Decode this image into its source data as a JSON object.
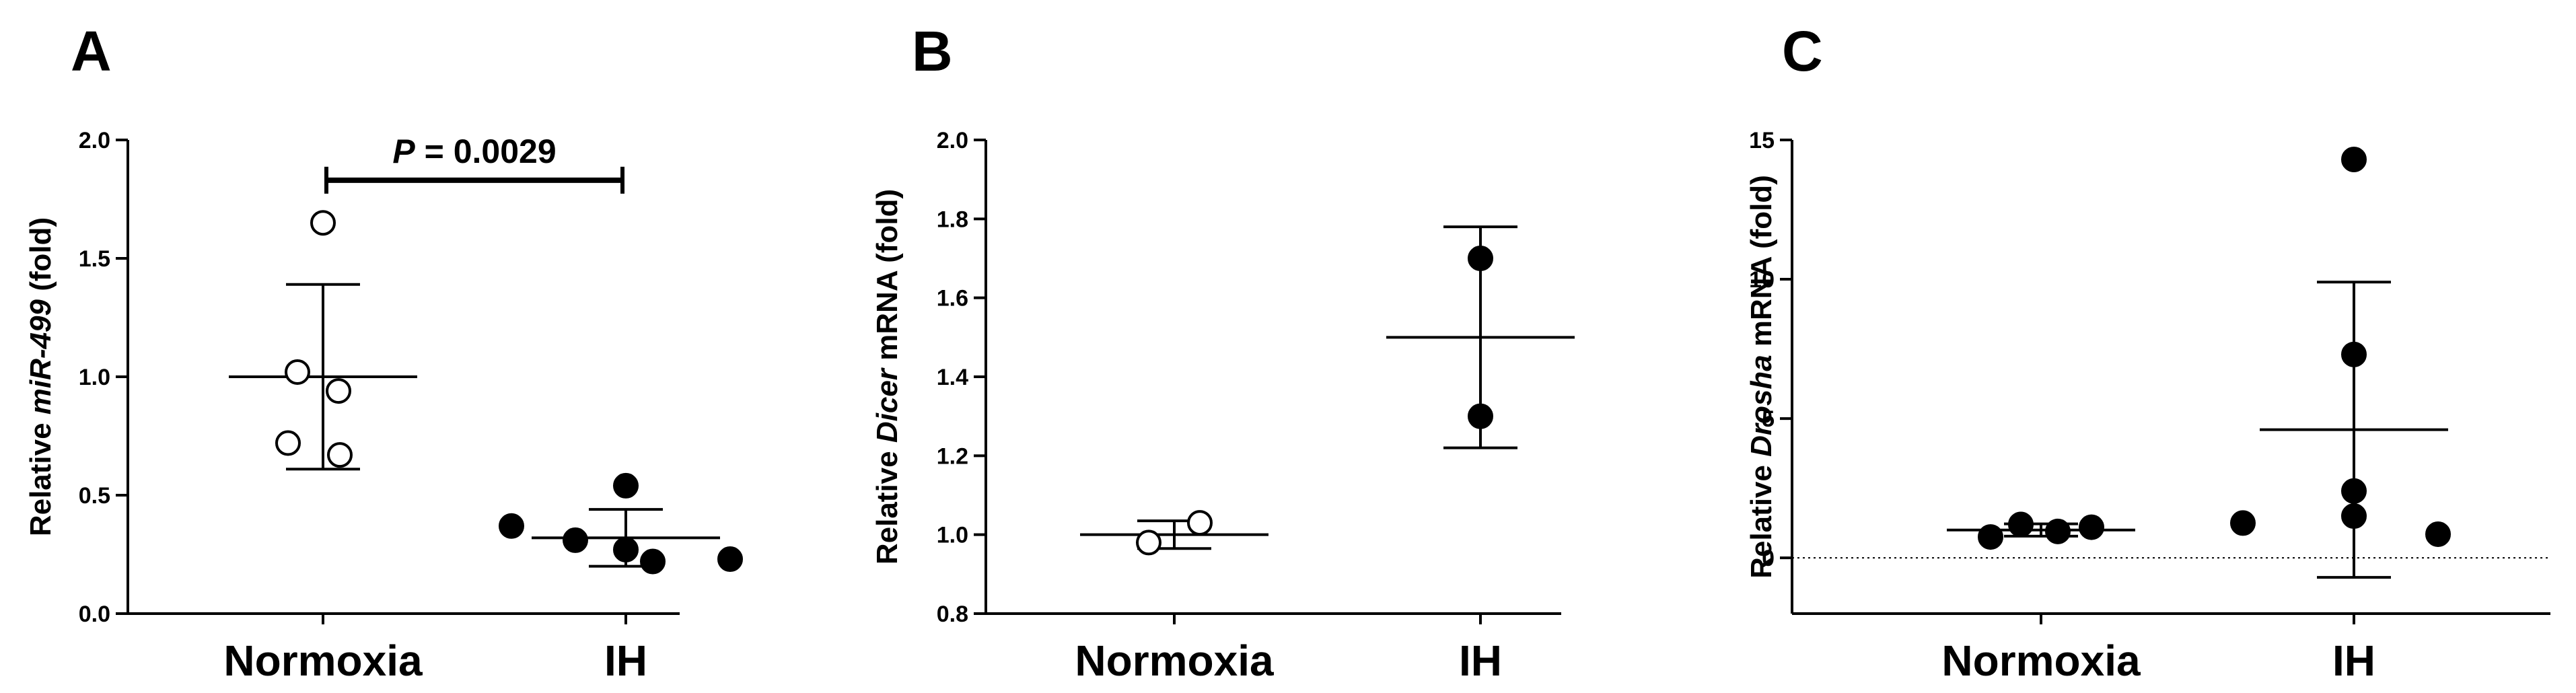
{
  "chart_data": [
    {
      "type": "scatter",
      "panel": "A",
      "ylabel": {
        "pre": "Relative ",
        "italic": "miR-499",
        "post": " (fold)"
      },
      "ylim": [
        0.0,
        2.0
      ],
      "yticks": [
        0.0,
        0.5,
        1.0,
        1.5,
        2.0
      ],
      "ytick_labels": [
        "0.0",
        "0.5",
        "1.0",
        "1.5",
        "2.0"
      ],
      "categories": [
        "Normoxia",
        "IH"
      ],
      "groups": [
        {
          "category": "Normoxia",
          "marker": "open",
          "points": [
            1.65,
            1.02,
            0.94,
            0.72,
            0.67
          ],
          "mean": 1.0,
          "sd_low": 0.61,
          "sd_high": 1.39
        },
        {
          "category": "IH",
          "marker": "filled",
          "points": [
            0.54,
            0.37,
            0.31,
            0.27,
            0.23,
            0.22
          ],
          "mean": 0.32,
          "sd_low": 0.2,
          "sd_high": 0.44
        }
      ],
      "annotation": {
        "italic": "P",
        "text": " = 0.0029",
        "y": 1.83
      }
    },
    {
      "type": "scatter",
      "panel": "B",
      "ylabel": {
        "pre": "Relative ",
        "italic": "Dicer",
        "post": " mRNA (fold)"
      },
      "ylim": [
        0.8,
        2.0
      ],
      "yticks": [
        0.8,
        1.0,
        1.2,
        1.4,
        1.6,
        1.8,
        2.0
      ],
      "ytick_labels": [
        "0.8",
        "1.0",
        "1.2",
        "1.4",
        "1.6",
        "1.8",
        "2.0"
      ],
      "categories": [
        "Normoxia",
        "IH"
      ],
      "groups": [
        {
          "category": "Normoxia",
          "marker": "open",
          "points": [
            1.03,
            0.98
          ],
          "mean": 1.0,
          "sd_low": 0.965,
          "sd_high": 1.035
        },
        {
          "category": "IH",
          "marker": "filled",
          "points": [
            1.7,
            1.3
          ],
          "mean": 1.5,
          "sd_low": 1.22,
          "sd_high": 1.78
        }
      ]
    },
    {
      "type": "scatter",
      "panel": "C",
      "ylabel": {
        "pre": "Relative ",
        "italic": "Drosha",
        "post": " mRNA (fold)"
      },
      "ylim": [
        -2,
        15
      ],
      "yticks": [
        0,
        5,
        10,
        15
      ],
      "ytick_labels": [
        "0",
        "5",
        "10",
        "15"
      ],
      "categories": [
        "Normoxia",
        "IH"
      ],
      "reference_line": 0,
      "groups": [
        {
          "category": "Normoxia",
          "marker": "filled",
          "points": [
            0.75,
            1.2,
            0.95,
            1.1
          ],
          "mean": 1.0,
          "sd_low": 0.78,
          "sd_high": 1.22
        },
        {
          "category": "IH",
          "marker": "filled",
          "points": [
            14.3,
            7.3,
            2.4,
            1.5,
            1.25,
            0.85
          ],
          "mean": 4.6,
          "sd_low": -0.7,
          "sd_high": 9.9
        }
      ]
    }
  ]
}
